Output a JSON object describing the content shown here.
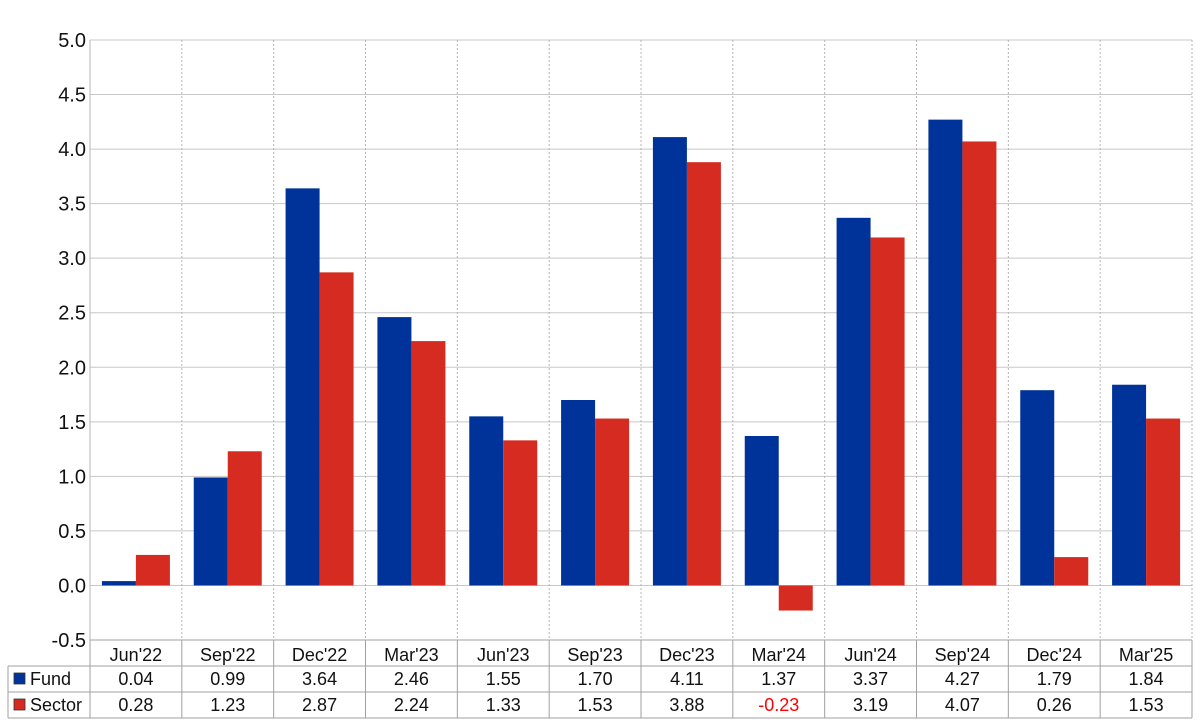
{
  "chart_data": {
    "type": "bar",
    "categories": [
      "Jun'22",
      "Sep'22",
      "Dec'22",
      "Mar'23",
      "Jun'23",
      "Sep'23",
      "Dec'23",
      "Mar'24",
      "Jun'24",
      "Sep'24",
      "Dec'24",
      "Mar'25"
    ],
    "series": [
      {
        "name": "Fund",
        "color": "#003399",
        "values": [
          0.04,
          0.99,
          3.64,
          2.46,
          1.55,
          1.7,
          4.11,
          1.37,
          3.37,
          4.27,
          1.79,
          1.84
        ],
        "labels": [
          "0.04",
          "0.99",
          "3.64",
          "2.46",
          "1.55",
          "1.70",
          "4.11",
          "1.37",
          "3.37",
          "4.27",
          "1.79",
          "1.84"
        ]
      },
      {
        "name": "Sector",
        "color": "#d62b20",
        "values": [
          0.28,
          1.23,
          2.87,
          2.24,
          1.33,
          1.53,
          3.88,
          -0.23,
          3.19,
          4.07,
          0.26,
          1.53
        ],
        "labels": [
          "0.28",
          "1.23",
          "2.87",
          "2.24",
          "1.33",
          "1.53",
          "3.88",
          "-0.23",
          "3.19",
          "4.07",
          "0.26",
          "1.53"
        ]
      }
    ],
    "y_ticks": [
      "5.0",
      "4.5",
      "4.0",
      "3.5",
      "3.0",
      "2.5",
      "2.0",
      "1.5",
      "1.0",
      "0.5",
      "0.0",
      "-0.5"
    ],
    "ylim": [
      -0.5,
      5.0
    ],
    "negative_value_color": "#ff0000",
    "grid": true,
    "legend": "data-table-below",
    "title": "",
    "xlabel": "",
    "ylabel": ""
  }
}
